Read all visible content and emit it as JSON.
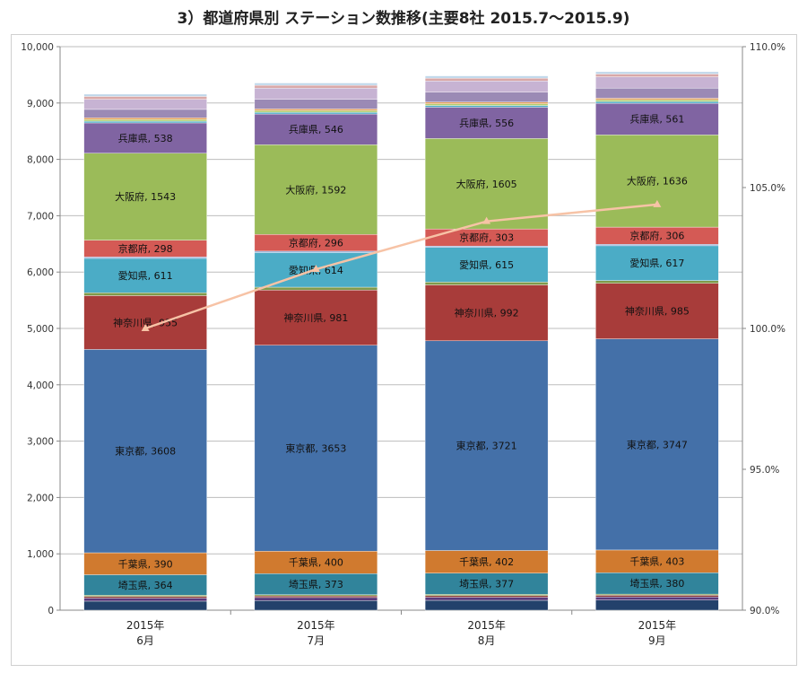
{
  "title": "3）都道府県別 ステーション数推移(主要8社 2015.7〜2015.9)",
  "chart_data": {
    "type": "bar",
    "stacked": true,
    "categories": [
      [
        "2015年",
        "6月"
      ],
      [
        "2015年",
        "7月"
      ],
      [
        "2015年",
        "8月"
      ],
      [
        "2015年",
        "9月"
      ]
    ],
    "series": [
      {
        "name": "",
        "values": [
          160,
          170,
          175,
          180
        ],
        "color": "#23416b"
      },
      {
        "name": "",
        "values": [
          55,
          55,
          55,
          55
        ],
        "color": "#5a3a7c"
      },
      {
        "name": "",
        "values": [
          30,
          30,
          30,
          30
        ],
        "color": "#8c3a3a"
      },
      {
        "name": "",
        "values": [
          20,
          20,
          20,
          20
        ],
        "color": "#7b9a3c"
      },
      {
        "name": "埼玉県",
        "values": [
          364,
          373,
          377,
          380
        ],
        "color": "#31849b"
      },
      {
        "name": "千葉県",
        "values": [
          390,
          400,
          402,
          403
        ],
        "color": "#d07a2f"
      },
      {
        "name": "東京都",
        "values": [
          3608,
          3653,
          3721,
          3747
        ],
        "color": "#4470a8"
      },
      {
        "name": "神奈川県",
        "values": [
          955,
          981,
          992,
          985
        ],
        "color": "#a83c3a"
      },
      {
        "name": "",
        "values": [
          50,
          50,
          50,
          50
        ],
        "color": "#7f9a4a"
      },
      {
        "name": "愛知県",
        "values": [
          611,
          614,
          615,
          617
        ],
        "color": "#4bacc6"
      },
      {
        "name": "",
        "values": [
          25,
          25,
          25,
          25
        ],
        "color": "#8aa9d6"
      },
      {
        "name": "京都府",
        "values": [
          298,
          296,
          303,
          306
        ],
        "color": "#d45a55"
      },
      {
        "name": "大阪府",
        "values": [
          1543,
          1592,
          1605,
          1636
        ],
        "color": "#9bbb59"
      },
      {
        "name": "兵庫県",
        "values": [
          538,
          546,
          556,
          561
        ],
        "color": "#8064a2"
      },
      {
        "name": "",
        "values": [
          30,
          30,
          30,
          30
        ],
        "color": "#4bacc6"
      },
      {
        "name": "",
        "values": [
          30,
          30,
          30,
          30
        ],
        "color": "#b2cc6e"
      },
      {
        "name": "",
        "values": [
          30,
          30,
          30,
          30
        ],
        "color": "#e5a15c"
      },
      {
        "name": "",
        "values": [
          150,
          170,
          175,
          180
        ],
        "color": "#9b8ab5"
      },
      {
        "name": "",
        "values": [
          180,
          200,
          200,
          200
        ],
        "color": "#c7b3d3"
      },
      {
        "name": "",
        "values": [
          50,
          50,
          50,
          50
        ],
        "color": "#d9a8a8"
      },
      {
        "name": "",
        "values": [
          40,
          40,
          40,
          40
        ],
        "color": "#bfd7ea"
      }
    ],
    "line": {
      "name": "",
      "values": [
        100.0,
        102.1,
        103.8,
        104.4
      ],
      "color": "#f7c3a6"
    },
    "ylim": [
      0,
      10000
    ],
    "yticks": [
      "0",
      "1,000",
      "2,000",
      "3,000",
      "4,000",
      "5,000",
      "6,000",
      "7,000",
      "8,000",
      "9,000",
      "10,000"
    ],
    "y2lim": [
      90,
      110
    ],
    "y2ticks": [
      "90.0%",
      "95.0%",
      "100.0%",
      "105.0%",
      "110.0%"
    ],
    "grid": true,
    "legend": "none"
  }
}
